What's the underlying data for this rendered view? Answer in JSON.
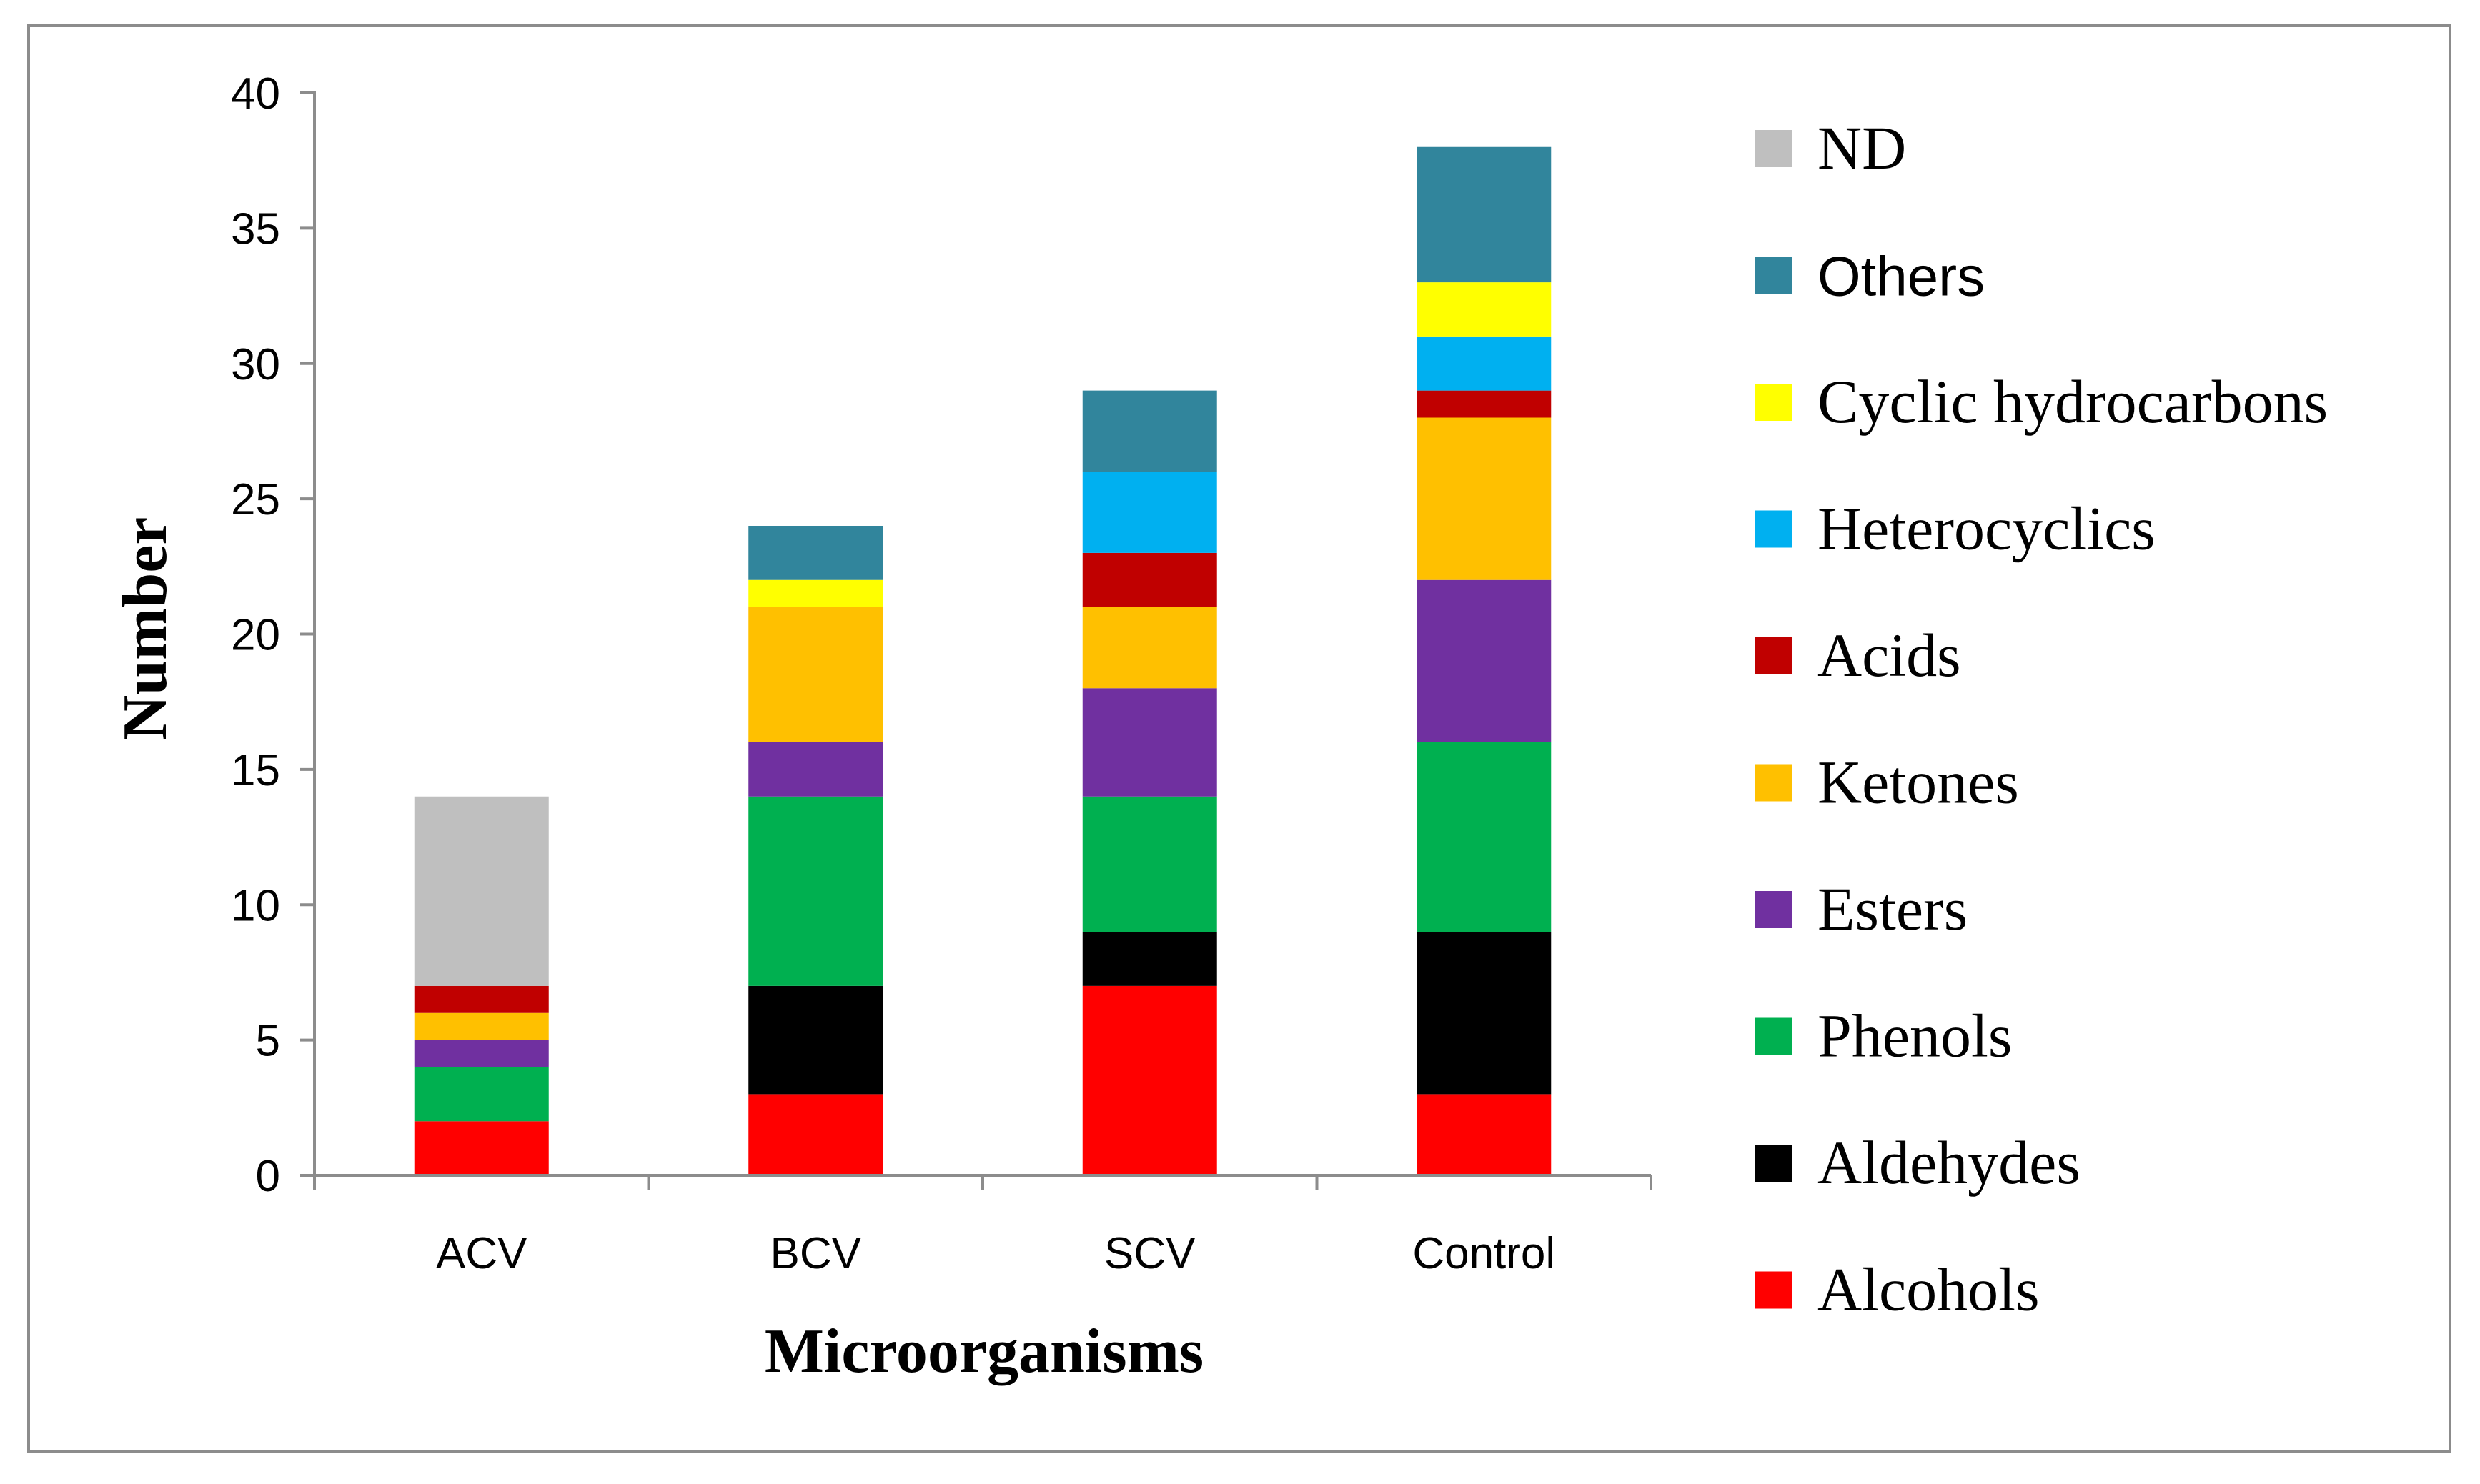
{
  "chart_data": {
    "type": "bar",
    "stacked": true,
    "title": "",
    "xlabel": "Microorganisms",
    "ylabel": "Number",
    "ylim": [
      0,
      40
    ],
    "yticks": [
      "0",
      "5",
      "10",
      "15",
      "20",
      "25",
      "30",
      "35",
      "40"
    ],
    "categories": [
      "ACV",
      "BCV",
      "SCV",
      "Control"
    ],
    "legend_position": "right",
    "series": [
      {
        "name": "Alcohols",
        "color": "#ff0000",
        "values": [
          2,
          3,
          7,
          3
        ]
      },
      {
        "name": "Aldehydes",
        "color": "#000000",
        "values": [
          0,
          4,
          2,
          6
        ]
      },
      {
        "name": "Phenols",
        "color": "#00b050",
        "values": [
          2,
          7,
          5,
          7
        ]
      },
      {
        "name": "Esters",
        "color": "#7030a0",
        "values": [
          1,
          2,
          4,
          6
        ]
      },
      {
        "name": "Ketones",
        "color": "#ffc000",
        "values": [
          1,
          5,
          3,
          6
        ]
      },
      {
        "name": "Acids",
        "color": "#c00000",
        "values": [
          1,
          0,
          2,
          1
        ]
      },
      {
        "name": "Heterocyclics",
        "color": "#00b0f0",
        "values": [
          0,
          0,
          3,
          2
        ]
      },
      {
        "name": "Cyclic hydrocarbons",
        "color": "#ffff00",
        "values": [
          0,
          1,
          0,
          2
        ]
      },
      {
        "name": "Others",
        "color": "#31859c",
        "values": [
          0,
          2,
          3,
          5
        ]
      },
      {
        "name": "ND",
        "color": "#bfbfbf",
        "values": [
          7,
          0,
          0,
          0
        ]
      }
    ],
    "legend_order": [
      "ND",
      "Others",
      "Cyclic hydrocarbons",
      "Heterocyclics",
      "Acids",
      "Ketones",
      "Esters",
      "Phenols",
      "Aldehydes",
      "Alcohols"
    ],
    "colors": {
      "axis": "#8c8c8c",
      "text": "#000000"
    }
  }
}
